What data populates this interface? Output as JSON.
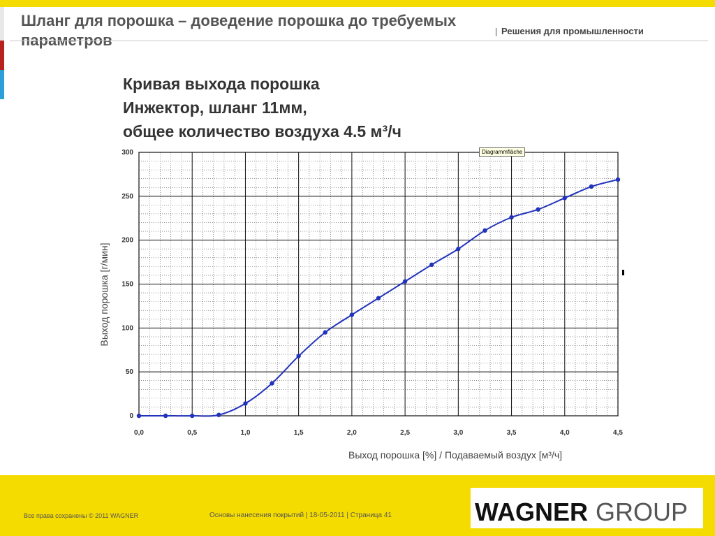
{
  "header": {
    "title": "Шланг для порошка – доведение порошка до требуемых параметров",
    "subtitle": "Решения для промышленности"
  },
  "chart_title": {
    "line1": "Кривая выхода порошка",
    "line2": "Инжектор, шланг 11мм,",
    "line3": "общее количество воздуха 4.5 м³/ч"
  },
  "tooltip": "Diagrammfläche",
  "chart_data": {
    "type": "line",
    "xlabel": "Выход порошка [%] / Подаваемый воздух [м³/ч]",
    "ylabel": "Выход порошка [г/мин]",
    "xlim": [
      0,
      4.5
    ],
    "ylim": [
      0,
      300
    ],
    "x_ticks": [
      "0,0",
      "0,5",
      "1,0",
      "1,5",
      "2,0",
      "2,5",
      "3,0",
      "3,5",
      "4,0",
      "4,5"
    ],
    "y_ticks": [
      "0",
      "50",
      "100",
      "150",
      "200",
      "250",
      "300"
    ],
    "grid": true,
    "color": "#2233bb",
    "x": [
      0,
      0.25,
      0.5,
      0.75,
      1.0,
      1.25,
      1.5,
      1.75,
      2.0,
      2.25,
      2.5,
      2.75,
      3.0,
      3.25,
      3.5,
      3.75,
      4.0,
      4.25,
      4.5
    ],
    "y": [
      0,
      0,
      0,
      1,
      14,
      37,
      68,
      95,
      115,
      134,
      153,
      172,
      190,
      211,
      226,
      235,
      248,
      261,
      269
    ]
  },
  "footer": {
    "copyright": "Все права сохранены © 2011 WAGNER",
    "info": "Основы нанесения покрытий | 18-05-2011 | Страница 41"
  },
  "logo": {
    "wagner": "WAGNER",
    "group": "GROUP"
  }
}
